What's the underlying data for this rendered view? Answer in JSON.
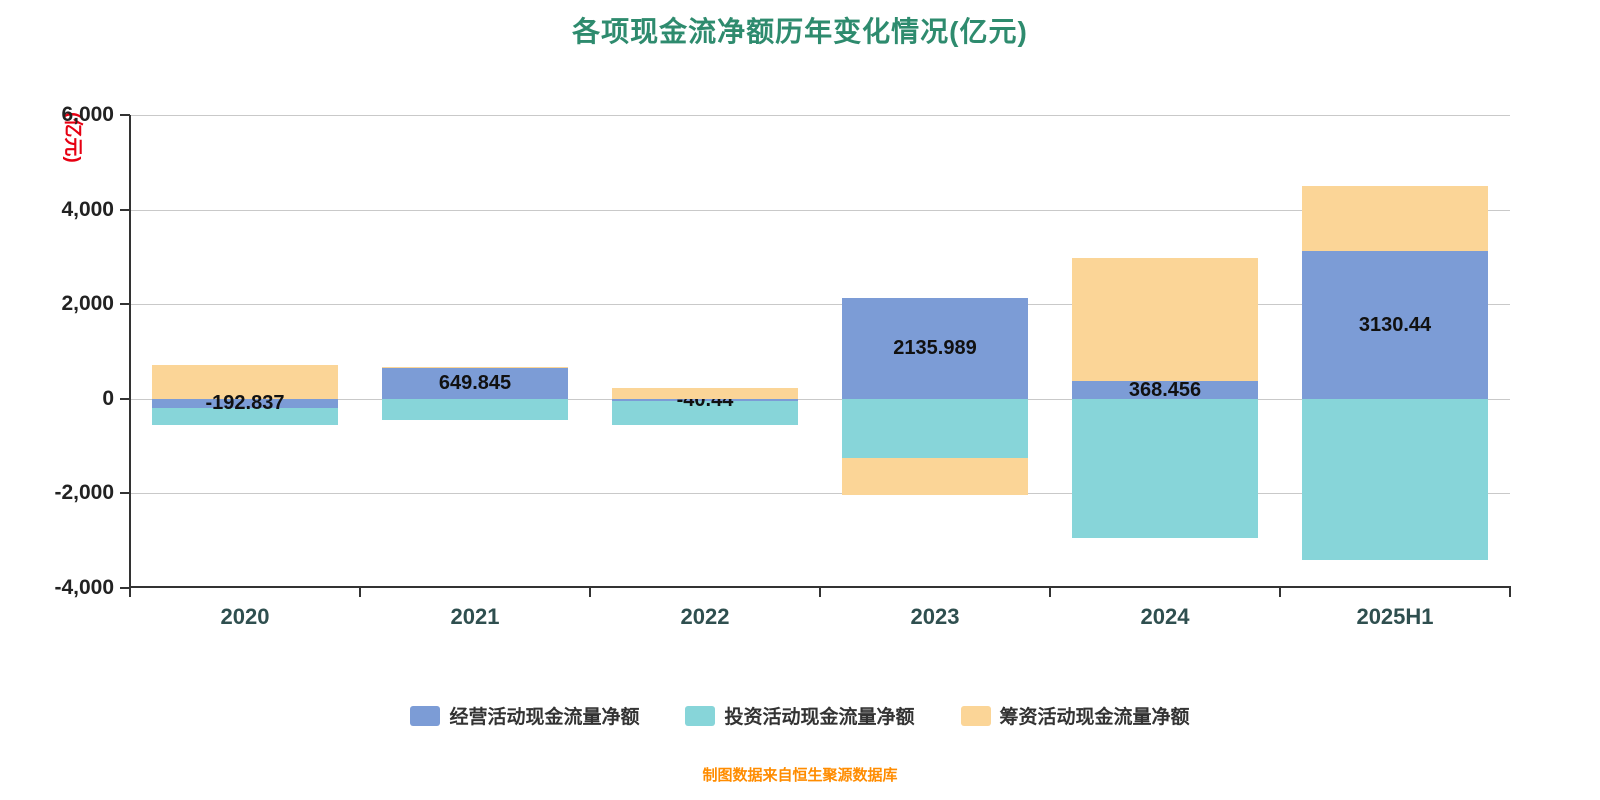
{
  "chart_data": {
    "type": "bar",
    "stacked": true,
    "title": "各项现金流净额历年变化情况(亿元)",
    "y_unit": "(亿元)",
    "caption": "制图数据来自恒生聚源数据库",
    "categories": [
      "2020",
      "2021",
      "2022",
      "2023",
      "2024",
      "2025H1"
    ],
    "series": [
      {
        "name": "经营活动现金流量净额",
        "color": "#7C9CD6",
        "values": [
          -192.837,
          649.845,
          -40.44,
          2135.989,
          368.456,
          3130.44
        ]
      },
      {
        "name": "投资活动现金流量净额",
        "color": "#87D5D9",
        "values": [
          -361,
          -445,
          -520,
          -1252,
          -2945,
          -3400
        ]
      },
      {
        "name": "筹资活动现金流量净额",
        "color": "#FBD597",
        "values": [
          718,
          15,
          228,
          -782,
          2600,
          1370
        ]
      }
    ],
    "data_labels": {
      "series_index": 0,
      "texts": [
        "-192.837",
        "649.845",
        "-40.44",
        "2135.989",
        "368.456",
        "3130.44"
      ],
      "hidden_behind_bars": [
        false,
        false,
        true,
        false,
        false,
        false
      ]
    },
    "ylim": [
      -4000,
      6000
    ],
    "yticks": [
      {
        "value": 6000,
        "label": "6,000"
      },
      {
        "value": 4000,
        "label": "4,000"
      },
      {
        "value": 2000,
        "label": "2,000"
      },
      {
        "value": 0,
        "label": "0"
      },
      {
        "value": -2000,
        "label": "-2,000"
      },
      {
        "value": -4000,
        "label": "-4,000"
      }
    ],
    "grid": true,
    "legend_position": "bottom"
  }
}
